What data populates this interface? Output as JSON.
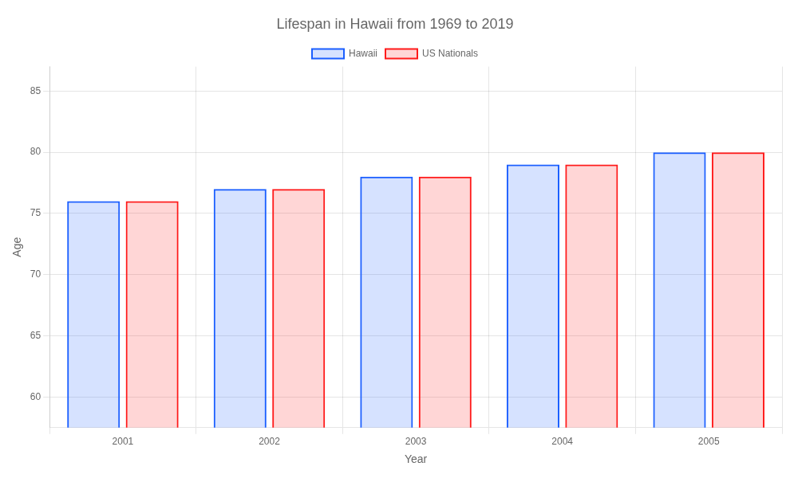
{
  "chart_data": {
    "type": "bar",
    "title": "Lifespan in Hawaii from 1969 to 2019",
    "xlabel": "Year",
    "ylabel": "Age",
    "categories": [
      "2001",
      "2002",
      "2003",
      "2004",
      "2005"
    ],
    "series": [
      {
        "name": "Hawaii",
        "color": "#1a5eff",
        "values": [
          76,
          77,
          78,
          79,
          80
        ]
      },
      {
        "name": "US Nationals",
        "color": "#ff1a1a",
        "values": [
          76,
          77,
          78,
          79,
          80
        ]
      }
    ],
    "ylim": [
      57.5,
      87
    ],
    "yticks": [
      60,
      65,
      70,
      75,
      80,
      85
    ],
    "grid": true,
    "legend": "top"
  }
}
